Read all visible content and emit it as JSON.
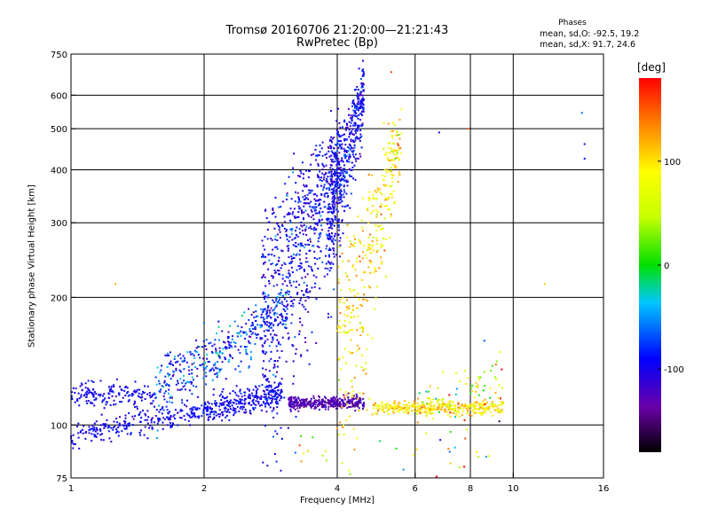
{
  "header": {
    "title_line1": "Tromsø 20160706 21:20:00—21:21:43",
    "title_line2": "RwPretec (Bp)",
    "phases_header": "Phases",
    "phases_o": "mean, sd,O: -92.5, 19.2",
    "phases_x": "mean, sd,X:  91.7, 24.6"
  },
  "colorbar": {
    "unit": "[deg]",
    "range": [
      -180,
      180
    ],
    "tick_values": [
      100,
      0,
      -100
    ],
    "tick_labels": [
      "100",
      "0",
      "-100"
    ]
  },
  "chart_data": {
    "type": "scatter",
    "title": "Tromsø 20160706 21:20:00—21:21:43",
    "subtitle": "RwPretec (Bp)",
    "xlabel": "Frequency [MHz]",
    "ylabel": "Stationary phase Virtual Height [km]",
    "x_scale": "log",
    "y_scale": "log",
    "xlim": [
      1,
      16
    ],
    "ylim": [
      75,
      750
    ],
    "x_ticks": [
      1,
      2,
      4,
      6,
      8,
      10,
      16
    ],
    "x_tick_labels": [
      "1",
      "2",
      "4",
      "6",
      "8",
      "10",
      "16"
    ],
    "x_grid": [
      2,
      4,
      6,
      8,
      10
    ],
    "y_ticks": [
      75,
      100,
      200,
      300,
      400,
      500,
      600,
      750
    ],
    "y_tick_labels": [
      "75",
      "100",
      "200",
      "300",
      "400",
      "500",
      "600",
      "750"
    ],
    "y_grid": [
      100,
      200,
      300,
      400,
      500,
      600
    ],
    "grid": true,
    "color_encoding": "phase [deg]",
    "clusters": [
      {
        "x_range": [
          1.0,
          1.55
        ],
        "y_center": 118,
        "y_spread": 4,
        "phase": -95,
        "phase_sd": 10,
        "density": 0.6
      },
      {
        "x_range": [
          1.0,
          2.0
        ],
        "y_start": 94,
        "y_end": 108,
        "y_spread": 3,
        "phase": -95,
        "phase_sd": 10,
        "density": 0.9
      },
      {
        "x_range": [
          1.55,
          3.1
        ],
        "y_start": 120,
        "y_end": 190,
        "y_spread": 12,
        "phase": -80,
        "phase_sd": 28,
        "density": 1.6
      },
      {
        "x_range": [
          2.0,
          3.0
        ],
        "y_start": 108,
        "y_end": 120,
        "y_spread": 4,
        "phase": -95,
        "phase_sd": 12,
        "density": 1.2
      },
      {
        "x_range": [
          2.7,
          4.1
        ],
        "y_start": 180,
        "y_end": 420,
        "y_spread": 70,
        "phase": -95,
        "phase_sd": 20,
        "density": 3.0
      },
      {
        "x_range": [
          3.1,
          4.6
        ],
        "y_center": 113,
        "y_spread": 2,
        "phase": -130,
        "phase_sd": 12,
        "density": 1.4
      },
      {
        "x_range": [
          3.8,
          4.6
        ],
        "y_start": 300,
        "y_end": 620,
        "y_spread": 60,
        "phase": -95,
        "phase_sd": 18,
        "density": 1.8
      },
      {
        "x_range": [
          4.0,
          5.6
        ],
        "y_start": 130,
        "y_end": 500,
        "y_spread": 60,
        "phase": 95,
        "phase_sd": 28,
        "density": 1.4
      },
      {
        "x_range": [
          4.8,
          9.5
        ],
        "y_center": 110,
        "y_spread": 2,
        "phase": 95,
        "phase_sd": 22,
        "density": 1.4
      },
      {
        "x_range": [
          6.0,
          9.5
        ],
        "y_start": 110,
        "y_end": 130,
        "y_spread": 10,
        "phase": 70,
        "phase_sd": 55,
        "density": 0.3
      },
      {
        "x_range": [
          3.0,
          9.0
        ],
        "y_center": 85,
        "y_spread": 6,
        "phase": 60,
        "phase_sd": 80,
        "density": 0.12
      }
    ],
    "outliers": [
      {
        "x": 1.26,
        "y": 215,
        "phase": 120
      },
      {
        "x": 11.8,
        "y": 215,
        "phase": 110
      },
      {
        "x": 14.3,
        "y": 545,
        "phase": -60
      },
      {
        "x": 14.5,
        "y": 460,
        "phase": -100
      },
      {
        "x": 14.5,
        "y": 425,
        "phase": -90
      },
      {
        "x": 6.8,
        "y": 490,
        "phase": -100
      },
      {
        "x": 7.9,
        "y": 500,
        "phase": 150
      },
      {
        "x": 5.3,
        "y": 680,
        "phase": 160
      },
      {
        "x": 9.3,
        "y": 102,
        "phase": -160
      },
      {
        "x": 8.6,
        "y": 158,
        "phase": -70
      }
    ]
  }
}
